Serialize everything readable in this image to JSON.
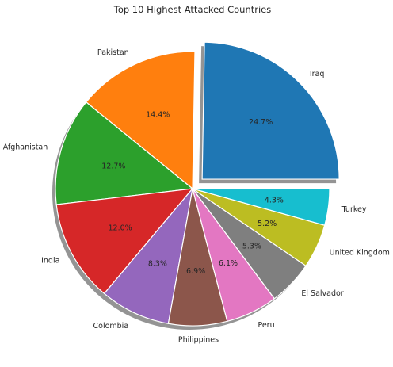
{
  "chart_data": {
    "type": "pie",
    "title": "Top 10 Highest Attacked Countries",
    "explode": "Iraq",
    "shadow": true,
    "slices": [
      {
        "label": "Iraq",
        "value": 24.7,
        "pct_label": "24.7%",
        "color": "#1f77b4"
      },
      {
        "label": "Pakistan",
        "value": 14.4,
        "pct_label": "14.4%",
        "color": "#ff7f0e"
      },
      {
        "label": "Afghanistan",
        "value": 12.7,
        "pct_label": "12.7%",
        "color": "#2ca02c"
      },
      {
        "label": "India",
        "value": 12.0,
        "pct_label": "12.0%",
        "color": "#d62728"
      },
      {
        "label": "Colombia",
        "value": 8.3,
        "pct_label": "8.3%",
        "color": "#9467bd"
      },
      {
        "label": "Philippines",
        "value": 6.9,
        "pct_label": "6.9%",
        "color": "#8c564b"
      },
      {
        "label": "Peru",
        "value": 6.1,
        "pct_label": "6.1%",
        "color": "#e377c2"
      },
      {
        "label": "El Salvador",
        "value": 5.3,
        "pct_label": "5.3%",
        "color": "#7f7f7f"
      },
      {
        "label": "United Kingdom",
        "value": 5.2,
        "pct_label": "5.2%",
        "color": "#bcbd22"
      },
      {
        "label": "Turkey",
        "value": 4.3,
        "pct_label": "4.3%",
        "color": "#17becf"
      }
    ]
  }
}
